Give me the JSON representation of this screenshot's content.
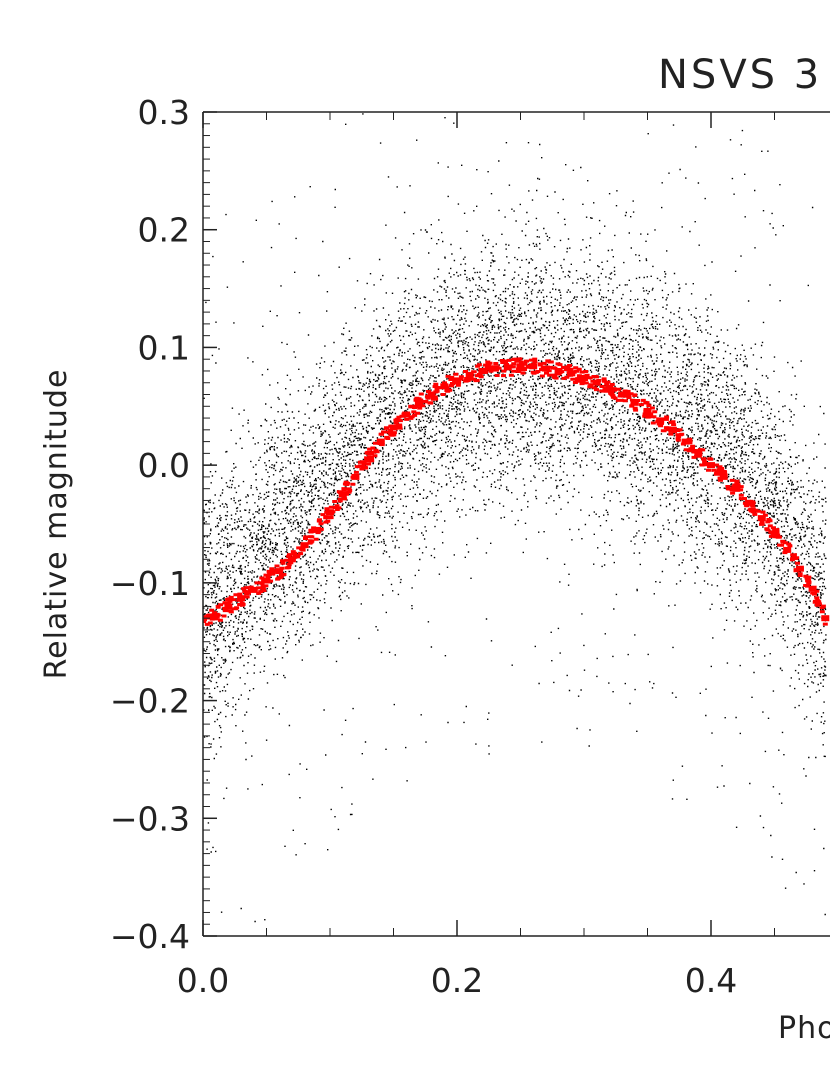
{
  "chart_data": {
    "type": "scatter",
    "title": "NSVS 3",
    "xlabel": "Pho",
    "ylabel": "Relative magnitude",
    "xlim": [
      0.0,
      0.49
    ],
    "ylim": [
      -0.4,
      0.3
    ],
    "x_ticks": [
      {
        "value": 0.0,
        "label": "0.0"
      },
      {
        "value": 0.2,
        "label": "0.2"
      },
      {
        "value": 0.4,
        "label": "0.4"
      }
    ],
    "y_ticks": [
      {
        "value": 0.3,
        "label": "0.3"
      },
      {
        "value": 0.2,
        "label": "0.2"
      },
      {
        "value": 0.1,
        "label": "0.1"
      },
      {
        "value": 0.0,
        "label": "0.0"
      },
      {
        "value": -0.1,
        "label": "−0.1"
      },
      {
        "value": -0.2,
        "label": "−0.2"
      },
      {
        "value": -0.3,
        "label": "−0.3"
      },
      {
        "value": -0.4,
        "label": "−0.4"
      }
    ],
    "grid": false,
    "series": [
      {
        "marker": "point",
        "color": "#000000",
        "point_count_approx": 30000,
        "trend": [
          {
            "x": 0.0,
            "y": -0.125
          },
          {
            "x": 0.05,
            "y": -0.07
          },
          {
            "x": 0.1,
            "y": -0.01
          },
          {
            "x": 0.15,
            "y": 0.04
          },
          {
            "x": 0.2,
            "y": 0.07
          },
          {
            "x": 0.25,
            "y": 0.085
          },
          {
            "x": 0.3,
            "y": 0.08
          },
          {
            "x": 0.35,
            "y": 0.055
          },
          {
            "x": 0.4,
            "y": 0.02
          },
          {
            "x": 0.45,
            "y": -0.04
          },
          {
            "x": 0.49,
            "y": -0.12
          }
        ],
        "scatter_sigma": 0.055
      },
      {
        "marker": "dash",
        "color": "#ff0000",
        "values": [
          {
            "x": 0.0,
            "y": -0.13
          },
          {
            "x": 0.01,
            "y": -0.128
          },
          {
            "x": 0.02,
            "y": -0.12
          },
          {
            "x": 0.03,
            "y": -0.113
          },
          {
            "x": 0.04,
            "y": -0.106
          },
          {
            "x": 0.05,
            "y": -0.098
          },
          {
            "x": 0.06,
            "y": -0.09
          },
          {
            "x": 0.07,
            "y": -0.08
          },
          {
            "x": 0.08,
            "y": -0.068
          },
          {
            "x": 0.09,
            "y": -0.055
          },
          {
            "x": 0.1,
            "y": -0.04
          },
          {
            "x": 0.11,
            "y": -0.025
          },
          {
            "x": 0.12,
            "y": -0.01
          },
          {
            "x": 0.13,
            "y": 0.005
          },
          {
            "x": 0.14,
            "y": 0.02
          },
          {
            "x": 0.15,
            "y": 0.032
          },
          {
            "x": 0.16,
            "y": 0.043
          },
          {
            "x": 0.17,
            "y": 0.052
          },
          {
            "x": 0.18,
            "y": 0.06
          },
          {
            "x": 0.19,
            "y": 0.067
          },
          {
            "x": 0.2,
            "y": 0.072
          },
          {
            "x": 0.21,
            "y": 0.076
          },
          {
            "x": 0.22,
            "y": 0.08
          },
          {
            "x": 0.23,
            "y": 0.082
          },
          {
            "x": 0.24,
            "y": 0.083
          },
          {
            "x": 0.25,
            "y": 0.084
          },
          {
            "x": 0.26,
            "y": 0.084
          },
          {
            "x": 0.27,
            "y": 0.082
          },
          {
            "x": 0.28,
            "y": 0.08
          },
          {
            "x": 0.29,
            "y": 0.078
          },
          {
            "x": 0.3,
            "y": 0.074
          },
          {
            "x": 0.31,
            "y": 0.07
          },
          {
            "x": 0.32,
            "y": 0.065
          },
          {
            "x": 0.33,
            "y": 0.06
          },
          {
            "x": 0.34,
            "y": 0.053
          },
          {
            "x": 0.35,
            "y": 0.046
          },
          {
            "x": 0.36,
            "y": 0.038
          },
          {
            "x": 0.37,
            "y": 0.03
          },
          {
            "x": 0.38,
            "y": 0.02
          },
          {
            "x": 0.39,
            "y": 0.01
          },
          {
            "x": 0.4,
            "y": 0.0
          },
          {
            "x": 0.41,
            "y": -0.01
          },
          {
            "x": 0.42,
            "y": -0.02
          },
          {
            "x": 0.43,
            "y": -0.032
          },
          {
            "x": 0.44,
            "y": -0.045
          },
          {
            "x": 0.45,
            "y": -0.058
          },
          {
            "x": 0.46,
            "y": -0.072
          },
          {
            "x": 0.47,
            "y": -0.088
          },
          {
            "x": 0.48,
            "y": -0.105
          },
          {
            "x": 0.49,
            "y": -0.13
          }
        ]
      }
    ]
  }
}
